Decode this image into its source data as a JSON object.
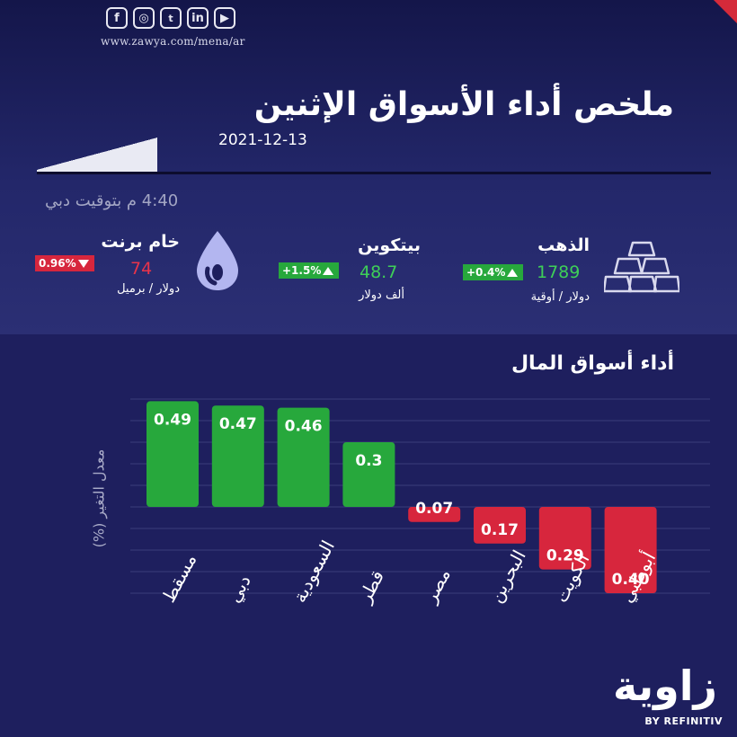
{
  "header": {
    "social": [
      {
        "icon": "facebook-icon",
        "glyph": "f"
      },
      {
        "icon": "instagram-icon",
        "glyph": "◎"
      },
      {
        "icon": "twitter-icon",
        "glyph": "🐦"
      },
      {
        "icon": "linkedin-icon",
        "glyph": "in"
      },
      {
        "icon": "youtube-icon",
        "glyph": "▶"
      }
    ],
    "url": "www.zawya.com/mena/ar",
    "title": "ملخص أداء الأسواق الإثنين",
    "date": "2021-12-13",
    "time": "4:40 م بتوقيت دبي"
  },
  "commodities": {
    "gold": {
      "name": "الذهب",
      "value": "1789",
      "change": "+0.4%",
      "unit": "دولار / أوقية",
      "direction": "up"
    },
    "bitcoin": {
      "name": "بيتكوين",
      "value": "48.7",
      "change": "+1.5%",
      "unit": "ألف دولار",
      "direction": "up"
    },
    "brent": {
      "name": "خام برنت",
      "value": "74",
      "change": "0.96%",
      "unit": "دولار / برميل",
      "direction": "down"
    }
  },
  "colors": {
    "up": "#27a83c",
    "down": "#d7263d",
    "grid": "#3a3c7a"
  },
  "chart_data": {
    "type": "bar",
    "title": "أداء أسواق المال",
    "ylabel": "معدل التغير (%)",
    "categories": [
      "مسقط",
      "دبي",
      "السعودية",
      "قطر",
      "مصر",
      "البحرين",
      "الكويت",
      "أبوظبي"
    ],
    "values": [
      0.49,
      0.47,
      0.46,
      0.3,
      -0.07,
      -0.17,
      -0.29,
      -0.4
    ],
    "labels": [
      "0.49",
      "0.47",
      "0.46",
      "0.3",
      "0.07",
      "0.17",
      "0.29",
      "0.40"
    ],
    "ylim": [
      -0.5,
      0.6
    ],
    "grid": true
  },
  "footer": {
    "logo": "زاوية",
    "byline": "BY REFINITIV"
  }
}
